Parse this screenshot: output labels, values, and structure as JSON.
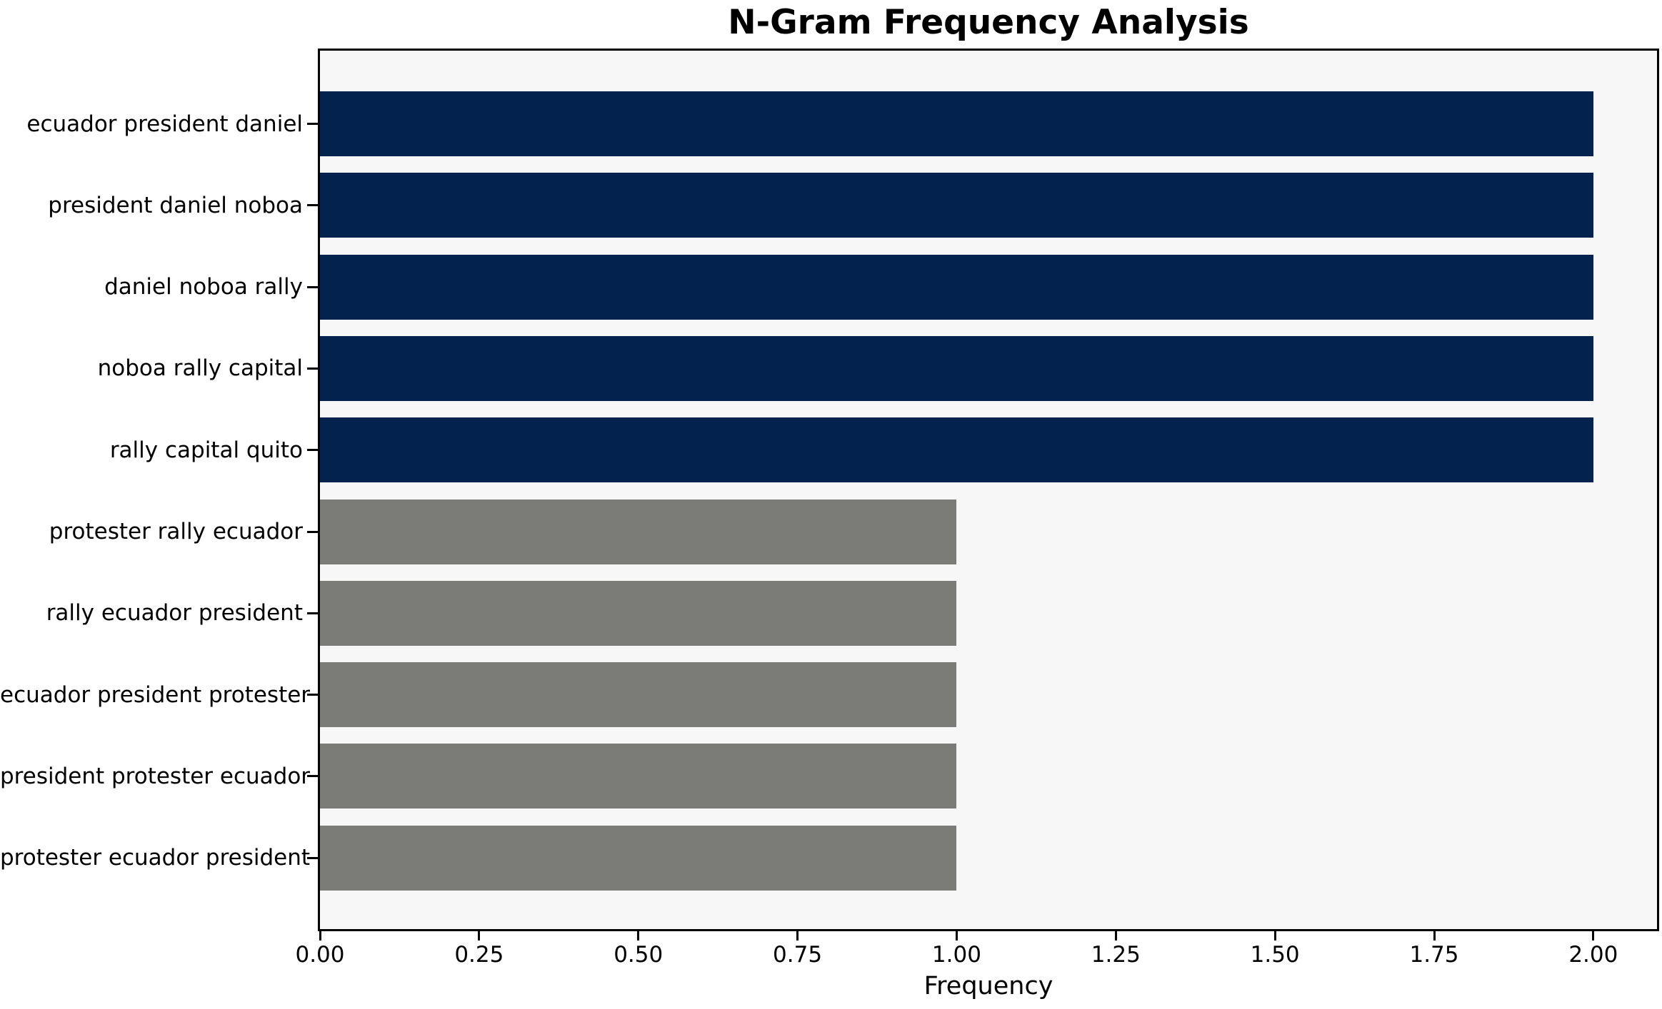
{
  "chart_data": {
    "type": "bar",
    "orientation": "horizontal",
    "title": "N-Gram Frequency Analysis",
    "xlabel": "Frequency",
    "ylabel": "",
    "categories": [
      "ecuador president daniel",
      "president daniel noboa",
      "daniel noboa rally",
      "noboa rally capital",
      "rally capital quito",
      "protester rally ecuador",
      "rally ecuador president",
      "ecuador president protester",
      "president protester ecuador",
      "protester ecuador president"
    ],
    "values": [
      2,
      2,
      2,
      2,
      2,
      1,
      1,
      1,
      1,
      1
    ],
    "bar_colors": [
      "#03224d",
      "#03224d",
      "#03224d",
      "#03224d",
      "#03224d",
      "#7b7b78",
      "#7b7b78",
      "#7b7b78",
      "#7b7b78",
      "#7b7b78"
    ],
    "xlim": [
      0,
      2.1
    ],
    "xtick_values": [
      0,
      0.25,
      0.5,
      0.75,
      1.0,
      1.25,
      1.5,
      1.75,
      2.0
    ],
    "xtick_labels": [
      "0.00",
      "0.25",
      "0.50",
      "0.75",
      "1.00",
      "1.25",
      "1.50",
      "1.75",
      "2.00"
    ],
    "grid": false,
    "legend": "none",
    "colors": {
      "high_frequency_bar": "#03224d",
      "low_frequency_bar": "#7b7b78",
      "plot_background": "#f7f7f7",
      "figure_background": "#ffffff",
      "axis_spine": "#000000",
      "text": "#000000"
    }
  }
}
